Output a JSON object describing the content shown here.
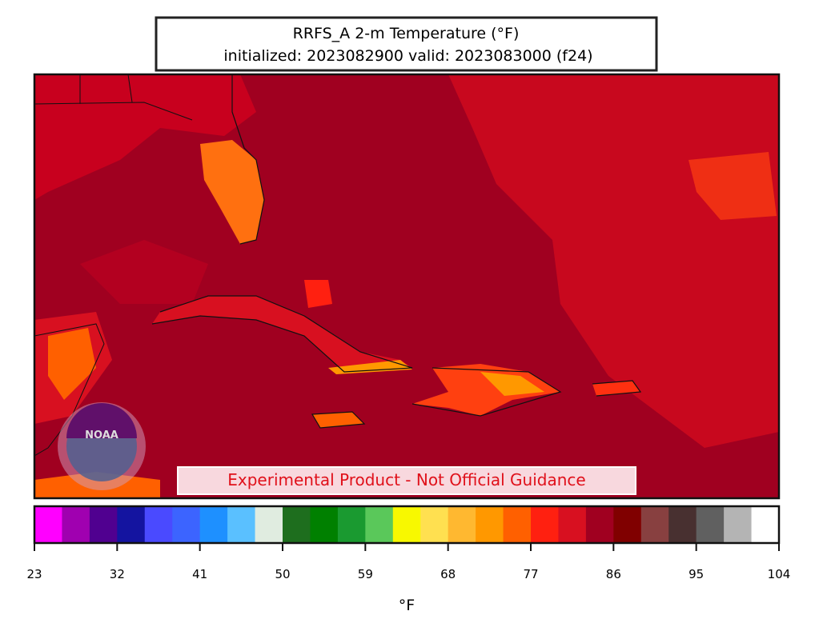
{
  "header": {
    "title": "RRFS_A 2-m Temperature (°F)",
    "subtitle": "initialized: 2023082900 valid: 2023083000 (f24)"
  },
  "map": {
    "watermark": "Experimental Product - Not Official Guidance",
    "logo": "NOAA"
  },
  "colorbar": {
    "range": [
      23,
      104
    ],
    "ticks": [
      23,
      32,
      41,
      50,
      59,
      68,
      77,
      86,
      95,
      104
    ],
    "label": "°F",
    "colors": [
      "#ff00ff",
      "#a000b0",
      "#500090",
      "#1414a0",
      "#4a4aff",
      "#3c64ff",
      "#1e90ff",
      "#5ac0ff",
      "#e0ece0",
      "#1e6e1e",
      "#008000",
      "#1a9a30",
      "#5ac85a",
      "#f8f800",
      "#ffe050",
      "#ffb830",
      "#ff9800",
      "#ff6000",
      "#ff2010",
      "#d81020",
      "#a00020",
      "#800000",
      "#884040",
      "#483030",
      "#606060",
      "#b4b4b4",
      "#ffffff"
    ]
  }
}
